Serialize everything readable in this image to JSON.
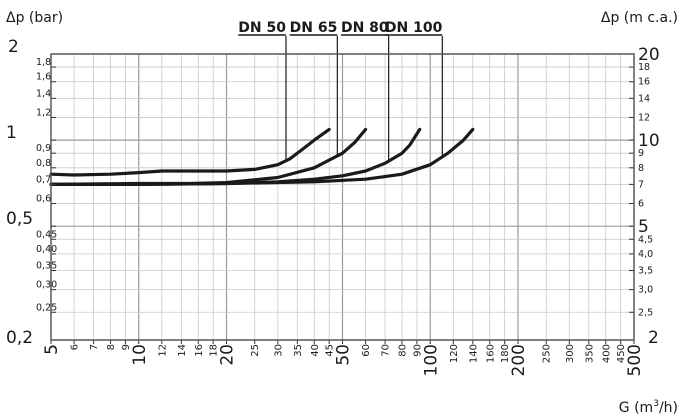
{
  "chart_data": {
    "type": "line",
    "title": "",
    "xlabel": "G (m³/h)",
    "ylabel_left": "Δp (bar)",
    "ylabel_right": "Δp (m c.a.)",
    "x_scale": "log",
    "y_scale": "log",
    "xlim": [
      5,
      500
    ],
    "ylim": [
      0.2,
      2
    ],
    "grid": true,
    "x_ticks": [
      {
        "value": 5,
        "label": "5",
        "major": true
      },
      {
        "value": 6,
        "label": "6"
      },
      {
        "value": 7,
        "label": "7"
      },
      {
        "value": 8,
        "label": "8"
      },
      {
        "value": 9,
        "label": "9"
      },
      {
        "value": 10,
        "label": "10",
        "major": true
      },
      {
        "value": 12,
        "label": "12"
      },
      {
        "value": 14,
        "label": "14"
      },
      {
        "value": 16,
        "label": "16"
      },
      {
        "value": 18,
        "label": "18"
      },
      {
        "value": 20,
        "label": "20",
        "major": true
      },
      {
        "value": 25,
        "label": "25"
      },
      {
        "value": 30,
        "label": "30"
      },
      {
        "value": 35,
        "label": "35"
      },
      {
        "value": 40,
        "label": "40"
      },
      {
        "value": 45,
        "label": "45"
      },
      {
        "value": 50,
        "label": "50",
        "major": true
      },
      {
        "value": 60,
        "label": "60"
      },
      {
        "value": 70,
        "label": "70"
      },
      {
        "value": 80,
        "label": "80"
      },
      {
        "value": 90,
        "label": "90"
      },
      {
        "value": 100,
        "label": "100",
        "major": true
      },
      {
        "value": 120,
        "label": "120"
      },
      {
        "value": 140,
        "label": "140"
      },
      {
        "value": 160,
        "label": "160"
      },
      {
        "value": 180,
        "label": "180"
      },
      {
        "value": 200,
        "label": "200",
        "major": true
      },
      {
        "value": 250,
        "label": "250"
      },
      {
        "value": 300,
        "label": "300"
      },
      {
        "value": 350,
        "label": "350"
      },
      {
        "value": 400,
        "label": "400"
      },
      {
        "value": 450,
        "label": "450"
      },
      {
        "value": 500,
        "label": "500",
        "major": true
      }
    ],
    "y_ticks_left": [
      {
        "value": 2,
        "label": "2",
        "major": true
      },
      {
        "value": 1.8,
        "label": "1,8"
      },
      {
        "value": 1.6,
        "label": "1,6"
      },
      {
        "value": 1.4,
        "label": "1,4"
      },
      {
        "value": 1.2,
        "label": "1,2"
      },
      {
        "value": 1,
        "label": "1",
        "major": true
      },
      {
        "value": 0.9,
        "label": "0,9"
      },
      {
        "value": 0.8,
        "label": "0,8"
      },
      {
        "value": 0.7,
        "label": "0,7"
      },
      {
        "value": 0.6,
        "label": "0,6"
      },
      {
        "value": 0.5,
        "label": "0,5",
        "major": true
      },
      {
        "value": 0.45,
        "label": "0,45"
      },
      {
        "value": 0.4,
        "label": "0,40"
      },
      {
        "value": 0.35,
        "label": "0,35"
      },
      {
        "value": 0.3,
        "label": "0,30"
      },
      {
        "value": 0.25,
        "label": "0,25"
      },
      {
        "value": 0.2,
        "label": "0,2",
        "major": true
      }
    ],
    "y_ticks_right": [
      {
        "value": 2,
        "label": "20",
        "major": true
      },
      {
        "value": 1.8,
        "label": "18"
      },
      {
        "value": 1.6,
        "label": "16"
      },
      {
        "value": 1.4,
        "label": "14"
      },
      {
        "value": 1.2,
        "label": "12"
      },
      {
        "value": 1,
        "label": "10",
        "major": true
      },
      {
        "value": 0.9,
        "label": "9"
      },
      {
        "value": 0.8,
        "label": "8"
      },
      {
        "value": 0.7,
        "label": "7"
      },
      {
        "value": 0.6,
        "label": "6"
      },
      {
        "value": 0.5,
        "label": "5",
        "major": true
      },
      {
        "value": 0.45,
        "label": "4,5"
      },
      {
        "value": 0.4,
        "label": "4,0"
      },
      {
        "value": 0.35,
        "label": "3,5"
      },
      {
        "value": 0.3,
        "label": "3,0"
      },
      {
        "value": 0.25,
        "label": "2,5"
      },
      {
        "value": 0.2,
        "label": "2",
        "major": true
      }
    ],
    "series": [
      {
        "name": "DN 50",
        "label_x": 32,
        "x": [
          5,
          6,
          8,
          10,
          12,
          15,
          20,
          25,
          30,
          33,
          36,
          40,
          45
        ],
        "y": [
          0.76,
          0.755,
          0.76,
          0.77,
          0.78,
          0.78,
          0.78,
          0.79,
          0.82,
          0.86,
          0.92,
          1.0,
          1.09
        ]
      },
      {
        "name": "DN 65",
        "label_x": 48,
        "x": [
          5,
          10,
          15,
          20,
          30,
          40,
          50,
          55,
          60
        ],
        "y": [
          0.7,
          0.705,
          0.705,
          0.71,
          0.74,
          0.8,
          0.9,
          0.98,
          1.09
        ]
      },
      {
        "name": "DN 80",
        "label_x": 72,
        "x": [
          5,
          10,
          20,
          30,
          40,
          50,
          60,
          70,
          80,
          85,
          92
        ],
        "y": [
          0.7,
          0.7,
          0.705,
          0.715,
          0.73,
          0.75,
          0.78,
          0.83,
          0.9,
          0.96,
          1.09
        ]
      },
      {
        "name": "DN 100",
        "label_x": 110,
        "x": [
          5,
          10,
          20,
          40,
          60,
          80,
          100,
          115,
          130,
          140
        ],
        "y": [
          0.7,
          0.7,
          0.705,
          0.715,
          0.73,
          0.76,
          0.82,
          0.9,
          1.0,
          1.09
        ]
      }
    ]
  }
}
